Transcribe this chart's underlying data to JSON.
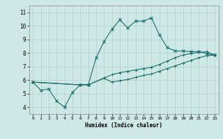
{
  "title": "",
  "xlabel": "Humidex (Indice chaleur)",
  "ylabel": "",
  "background_color": "#cde8e5",
  "grid_color": "#aecfcc",
  "line_color": "#1a6e6a",
  "xlim": [
    -0.5,
    23.5
  ],
  "ylim": [
    3.5,
    11.5
  ],
  "xticks": [
    0,
    1,
    2,
    3,
    4,
    5,
    6,
    7,
    8,
    9,
    10,
    11,
    12,
    13,
    14,
    15,
    16,
    17,
    18,
    19,
    20,
    21,
    22,
    23
  ],
  "yticks": [
    4,
    5,
    6,
    7,
    8,
    9,
    10,
    11
  ],
  "line1_x": [
    0,
    1,
    2,
    3,
    4,
    5,
    6,
    7,
    8,
    9,
    10,
    11,
    12,
    13,
    14,
    15,
    16,
    17,
    18,
    19,
    20,
    21,
    22,
    23
  ],
  "line1_y": [
    5.85,
    5.25,
    5.35,
    4.45,
    4.0,
    5.1,
    5.65,
    5.65,
    7.65,
    8.85,
    9.75,
    10.45,
    9.85,
    10.35,
    10.35,
    10.6,
    9.35,
    8.4,
    8.15,
    8.15,
    8.1,
    8.1,
    7.95,
    7.85
  ],
  "line2_x": [
    0,
    6,
    7,
    9,
    10,
    11,
    12,
    13,
    14,
    15,
    16,
    17,
    18,
    19,
    20,
    21,
    22,
    23
  ],
  "line2_y": [
    5.85,
    5.65,
    5.65,
    6.15,
    6.4,
    6.55,
    6.65,
    6.75,
    6.85,
    6.95,
    7.15,
    7.4,
    7.65,
    7.85,
    7.95,
    8.05,
    8.1,
    7.85
  ],
  "line3_x": [
    0,
    6,
    7,
    9,
    10,
    11,
    12,
    13,
    14,
    15,
    16,
    17,
    18,
    19,
    20,
    21,
    22,
    23
  ],
  "line3_y": [
    5.85,
    5.65,
    5.65,
    6.15,
    5.85,
    5.95,
    6.05,
    6.2,
    6.35,
    6.45,
    6.65,
    6.85,
    7.05,
    7.25,
    7.45,
    7.65,
    7.8,
    7.85
  ]
}
